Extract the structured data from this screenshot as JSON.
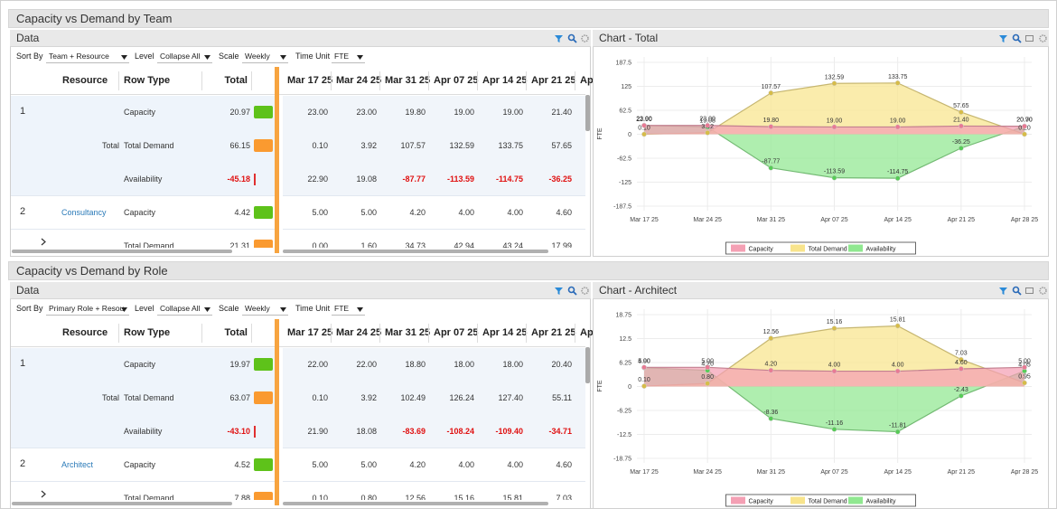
{
  "sections": [
    {
      "title": "Capacity vs Demand by Team",
      "data_panel": {
        "title": "Data",
        "toolbar": {
          "sort_by_label": "Sort By",
          "sort_by": "Team + Resource",
          "level_label": "Level",
          "level": "Collapse All",
          "scale_label": "Scale",
          "scale": "Weekly",
          "time_unit_label": "Time Unit",
          "time_unit": "FTE"
        },
        "frozen_columns": [
          "Resource",
          "Row Type",
          "Total"
        ],
        "week_columns": [
          "Mar 17 25",
          "Mar 24 25",
          "Mar 31 25",
          "Apr 07 25",
          "Apr 14 25",
          "Apr 21 25",
          "Ap"
        ],
        "rows": [
          {
            "index": "1",
            "row_type": "Capacity",
            "total": "20.97",
            "weeks": [
              "23.00",
              "23.00",
              "19.80",
              "19.00",
              "19.00",
              "21.40"
            ]
          },
          {
            "resource": "Total",
            "row_type": "Total Demand",
            "total": "66.15",
            "weeks": [
              "0.10",
              "3.92",
              "107.57",
              "132.59",
              "133.75",
              "57.65"
            ]
          },
          {
            "row_type": "Availability",
            "total": "-45.18",
            "weeks": [
              "22.90",
              "19.08",
              "-87.77",
              "-113.59",
              "-114.75",
              "-36.25"
            ]
          },
          {
            "index": "2",
            "resource": "Consultancy",
            "row_type": "Capacity",
            "total": "4.42",
            "weeks": [
              "5.00",
              "5.00",
              "4.20",
              "4.00",
              "4.00",
              "4.60"
            ]
          },
          {
            "expandable": true,
            "row_type": "Total Demand",
            "total": "21.31",
            "weeks": [
              "0.00",
              "1.60",
              "34.73",
              "42.94",
              "43.24",
              "17.99"
            ]
          }
        ]
      },
      "chart_panel": {
        "title": "Chart - Total",
        "chart": {
          "type": "area",
          "y_label": "FTE",
          "categories": [
            "Mar 17 25",
            "Mar 24 25",
            "Mar 31 25",
            "Apr 07 25",
            "Apr 14 25",
            "Apr 21 25",
            "Apr 28 25"
          ],
          "ylim": [
            -187.5,
            187.5
          ],
          "yticks": [
            187.5,
            125,
            62.5,
            0,
            -62.5,
            -125,
            -187.5
          ],
          "grid": true,
          "series": [
            {
              "name": "Capacity",
              "color": "#f4a0b4",
              "values": [
                23,
                23,
                19.8,
                19,
                19,
                21.4,
                20.9
              ],
              "value_labels": [
                "23.00",
                "23.00",
                "19.80",
                "19.00",
                "19.00",
                "21.40",
                "20.90"
              ]
            },
            {
              "name": "Total Demand",
              "color": "#f8e48c",
              "values": [
                0.1,
                3.92,
                107.57,
                132.59,
                133.75,
                57.65,
                0.2
              ],
              "value_labels": [
                "0.10",
                "3.92",
                "107.57",
                "132.59",
                "133.75",
                "57.65",
                "0.20"
              ]
            },
            {
              "name": "Availability",
              "color": "#90e890",
              "values": [
                22.9,
                19.08,
                -87.77,
                -113.59,
                -114.75,
                -36.25,
                20.7
              ],
              "value_labels": [
                "22.90",
                "19.08",
                "-87.77",
                "-113.59",
                "-114.75",
                "-36.25",
                "20.70"
              ]
            }
          ]
        }
      }
    },
    {
      "title": "Capacity vs Demand by Role",
      "data_panel": {
        "title": "Data",
        "toolbar": {
          "sort_by_label": "Sort By",
          "sort_by": "Primary Role + Resou",
          "level_label": "Level",
          "level": "Collapse All",
          "scale_label": "Scale",
          "scale": "Weekly",
          "time_unit_label": "Time Unit",
          "time_unit": "FTE"
        },
        "frozen_columns": [
          "Resource",
          "Row Type",
          "Total"
        ],
        "week_columns": [
          "Mar 17 25",
          "Mar 24 25",
          "Mar 31 25",
          "Apr 07 25",
          "Apr 14 25",
          "Apr 21 25",
          "Ap"
        ],
        "rows": [
          {
            "index": "1",
            "row_type": "Capacity",
            "total": "19.97",
            "weeks": [
              "22.00",
              "22.00",
              "18.80",
              "18.00",
              "18.00",
              "20.40"
            ]
          },
          {
            "resource": "Total",
            "row_type": "Total Demand",
            "total": "63.07",
            "weeks": [
              "0.10",
              "3.92",
              "102.49",
              "126.24",
              "127.40",
              "55.11"
            ]
          },
          {
            "row_type": "Availability",
            "total": "-43.10",
            "weeks": [
              "21.90",
              "18.08",
              "-83.69",
              "-108.24",
              "-109.40",
              "-34.71"
            ]
          },
          {
            "index": "2",
            "resource": "Architect",
            "row_type": "Capacity",
            "total": "4.52",
            "weeks": [
              "5.00",
              "5.00",
              "4.20",
              "4.00",
              "4.00",
              "4.60"
            ]
          },
          {
            "expandable": true,
            "row_type": "Total Demand",
            "total": "7.88",
            "weeks": [
              "0.10",
              "0.80",
              "12.56",
              "15.16",
              "15.81",
              "7.03"
            ]
          }
        ]
      },
      "chart_panel": {
        "title": "Chart - Architect",
        "chart": {
          "type": "area",
          "y_label": "FTE",
          "categories": [
            "Mar 17 25",
            "Mar 24 25",
            "Mar 31 25",
            "Apr 07 25",
            "Apr 14 25",
            "Apr 21 25",
            "Apr 28 25"
          ],
          "ylim": [
            -18.75,
            18.75
          ],
          "yticks": [
            18.75,
            12.5,
            6.25,
            0,
            -6.25,
            -12.5,
            -18.75
          ],
          "grid": true,
          "series": [
            {
              "name": "Capacity",
              "color": "#f4a0b4",
              "values": [
                5,
                5,
                4.2,
                4,
                4,
                4.6,
                5
              ],
              "value_labels": [
                "5.00",
                "5.00",
                "4.20",
                "4.00",
                "4.00",
                "4.60",
                "5.00"
              ]
            },
            {
              "name": "Total Demand",
              "color": "#f8e48c",
              "values": [
                0.1,
                0.8,
                12.56,
                15.16,
                15.81,
                7.03,
                0.95
              ],
              "value_labels": [
                "0.10",
                "0.80",
                "12.56",
                "15.16",
                "15.81",
                "7.03",
                "0.95"
              ]
            },
            {
              "name": "Availability",
              "color": "#90e890",
              "values": [
                4.9,
                4.2,
                -8.36,
                -11.16,
                -11.81,
                -2.43,
                4.05
              ],
              "value_labels": [
                "4.90",
                "4.20",
                "-8.36",
                "-11.16",
                "-11.81",
                "-2.43",
                "4.05"
              ]
            }
          ]
        }
      }
    }
  ]
}
